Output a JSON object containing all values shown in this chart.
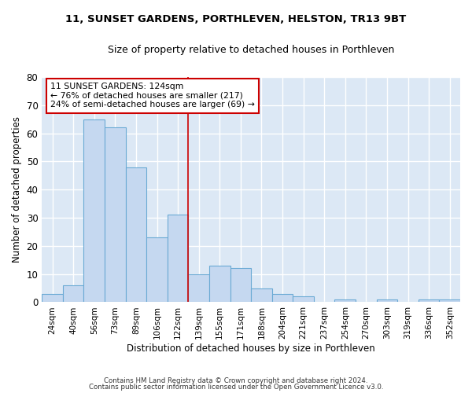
{
  "title": "11, SUNSET GARDENS, PORTHLEVEN, HELSTON, TR13 9BT",
  "subtitle": "Size of property relative to detached houses in Porthleven",
  "xlabel": "Distribution of detached houses by size in Porthleven",
  "ylabel": "Number of detached properties",
  "bar_labels": [
    "24sqm",
    "40sqm",
    "56sqm",
    "73sqm",
    "89sqm",
    "106sqm",
    "122sqm",
    "139sqm",
    "155sqm",
    "171sqm",
    "188sqm",
    "204sqm",
    "221sqm",
    "237sqm",
    "254sqm",
    "270sqm",
    "303sqm",
    "319sqm",
    "336sqm",
    "352sqm"
  ],
  "bar_values": [
    3,
    6,
    65,
    62,
    48,
    23,
    31,
    10,
    13,
    12,
    5,
    3,
    2,
    0,
    1,
    0,
    1,
    0,
    1,
    1
  ],
  "bar_color": "#c5d8f0",
  "bar_edge_color": "#6aaad4",
  "background_color": "#dce8f5",
  "grid_color": "#ffffff",
  "annotation_text": "11 SUNSET GARDENS: 124sqm\n← 76% of detached houses are smaller (217)\n24% of semi-detached houses are larger (69) →",
  "annotation_box_color": "#ffffff",
  "annotation_box_edge_color": "#cc0000",
  "redline_x": 6.5,
  "ylim": [
    0,
    80
  ],
  "yticks": [
    0,
    10,
    20,
    30,
    40,
    50,
    60,
    70,
    80
  ],
  "footer1": "Contains HM Land Registry data © Crown copyright and database right 2024.",
  "footer2": "Contains public sector information licensed under the Open Government Licence v3.0.",
  "fig_bg": "#ffffff"
}
